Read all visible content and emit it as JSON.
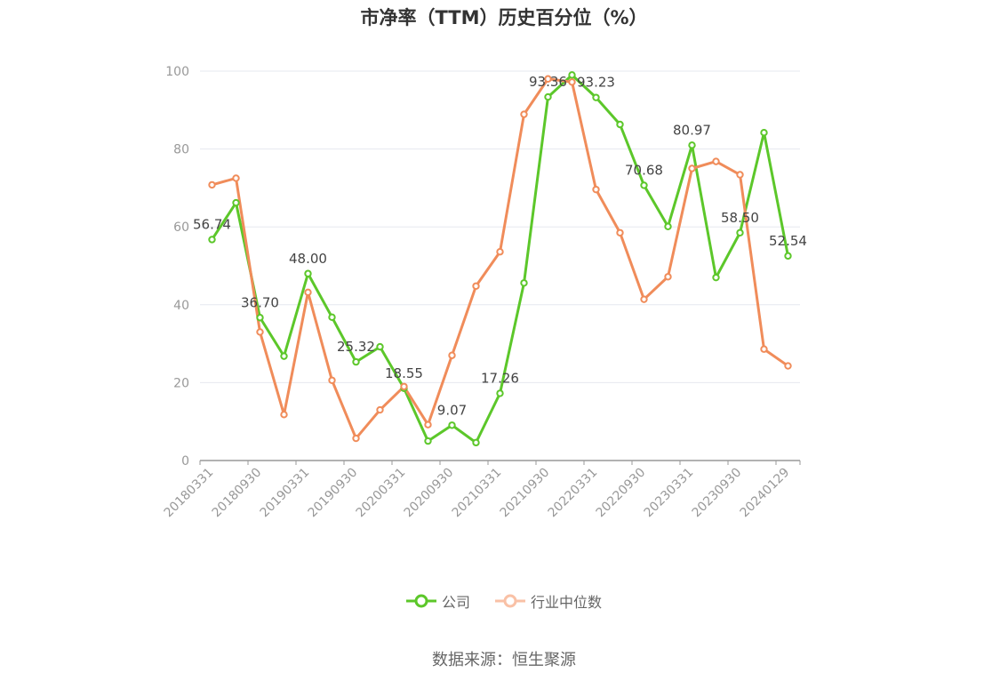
{
  "chart_data": {
    "type": "line",
    "title": "市净率（TTM）历史百分位（%）",
    "xlabel": "",
    "ylabel": "",
    "ylim": [
      0,
      100
    ],
    "yticks": [
      0,
      20,
      40,
      60,
      80,
      100
    ],
    "grid": true,
    "legend_position": "bottom",
    "x": [
      "20180331",
      "20180630",
      "20180930",
      "20181231",
      "20190331",
      "20190630",
      "20190930",
      "20191231",
      "20200331",
      "20200630",
      "20200930",
      "20201231",
      "20210331",
      "20210630",
      "20210930",
      "20211231",
      "20220331",
      "20220630",
      "20220930",
      "20221231",
      "20230331",
      "20230630",
      "20230930",
      "20231231",
      "20240129"
    ],
    "xtick_labels": [
      "20180331",
      "20180930",
      "20190331",
      "20190930",
      "20200331",
      "20200930",
      "20210331",
      "20210930",
      "20220331",
      "20220930",
      "20230331",
      "20230930",
      "20240129"
    ],
    "series": [
      {
        "name": "公司",
        "color": "#5cc72a",
        "values": [
          56.74,
          66.2,
          36.7,
          26.8,
          48.0,
          36.8,
          25.32,
          29.2,
          18.55,
          5.0,
          9.07,
          4.6,
          17.26,
          45.6,
          93.36,
          99.0,
          93.23,
          86.3,
          70.68,
          60.1,
          80.97,
          47.0,
          58.5,
          84.2,
          52.54
        ]
      },
      {
        "name": "行业中位数",
        "color": "#f08c5a",
        "values": [
          70.8,
          72.5,
          33.0,
          11.8,
          43.2,
          20.6,
          5.7,
          13.0,
          19.0,
          9.2,
          27.0,
          44.8,
          53.6,
          88.9,
          98.0,
          97.2,
          69.6,
          58.5,
          41.4,
          47.2,
          75.0,
          76.8,
          73.4,
          28.6,
          24.3
        ]
      }
    ],
    "annotations": [
      {
        "index": 0,
        "series": 0,
        "text": "56.74"
      },
      {
        "index": 2,
        "series": 0,
        "text": "36.70"
      },
      {
        "index": 4,
        "series": 0,
        "text": "48.00"
      },
      {
        "index": 6,
        "series": 0,
        "text": "25.32"
      },
      {
        "index": 8,
        "series": 0,
        "text": "18.55"
      },
      {
        "index": 10,
        "series": 0,
        "text": "9.07"
      },
      {
        "index": 12,
        "series": 0,
        "text": "17.26"
      },
      {
        "index": 14,
        "series": 0,
        "text": "93.36"
      },
      {
        "index": 16,
        "series": 0,
        "text": "93.23"
      },
      {
        "index": 18,
        "series": 0,
        "text": "70.68"
      },
      {
        "index": 20,
        "series": 0,
        "text": "80.97"
      },
      {
        "index": 22,
        "series": 0,
        "text": "58.50"
      },
      {
        "index": 24,
        "series": 0,
        "text": "52.54"
      }
    ]
  },
  "legend": {
    "items": [
      {
        "label": "公司",
        "color": "#5cc72a"
      },
      {
        "label": "行业中位数",
        "color": "#f9c1a6"
      }
    ]
  },
  "footer": {
    "source": "数据来源：恒生聚源"
  }
}
